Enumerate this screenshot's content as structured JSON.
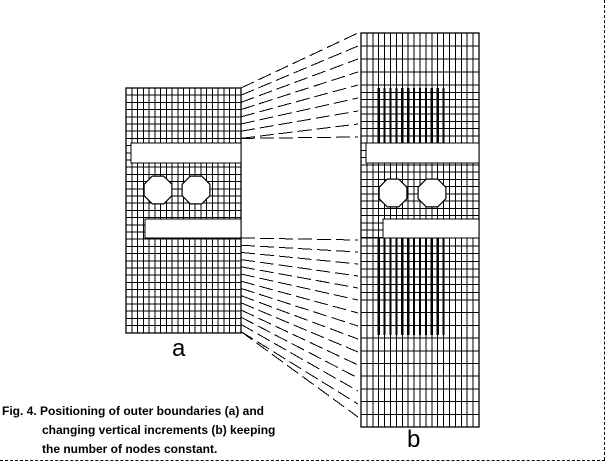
{
  "labels": {
    "mesh_a": "a",
    "mesh_b": "b"
  },
  "caption": {
    "line1": "Fig. 4. Positioning of outer boundaries (a)  and",
    "line2": "changing vertical increments (b) keeping",
    "line3": "the number of nodes constant."
  },
  "colors": {
    "ink": "#000000",
    "background": "#ffffff"
  }
}
